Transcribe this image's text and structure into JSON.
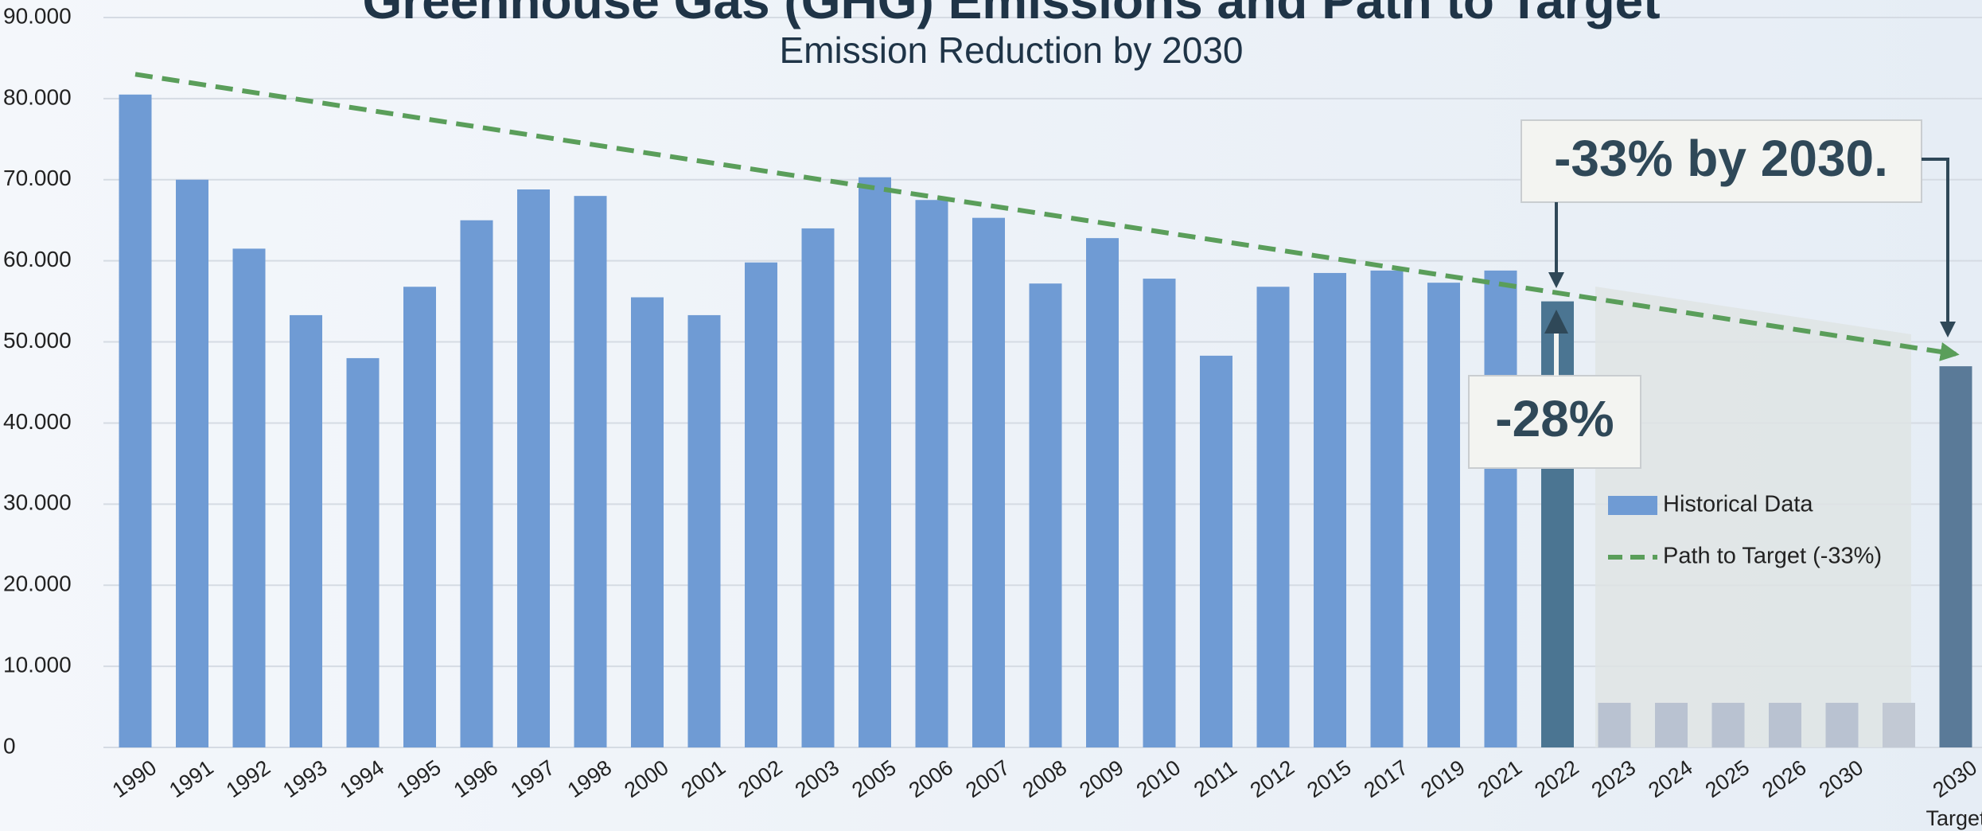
{
  "chart_data": {
    "type": "bar",
    "title": "Greenhouse Gas (GHG) Emissions and Path to Target",
    "subtitle": "Emission Reduction by 2030",
    "categories": [
      "1990",
      "1991",
      "1992",
      "1993",
      "1994",
      "1995",
      "1996",
      "1997",
      "1998",
      "2000",
      "2001",
      "2002",
      "2003",
      "2005",
      "2006",
      "2007",
      "2008",
      "2009",
      "2010",
      "2011",
      "2012",
      "2015",
      "2017",
      "2019",
      "2021",
      "2022",
      "2023",
      "2024",
      "2025",
      "2026",
      "2030",
      null,
      "2030"
    ],
    "target_label": "Target",
    "series": [
      {
        "name": "Historical Data",
        "color": "#6f9bd4",
        "values": [
          80.5,
          70,
          61.5,
          53.3,
          48,
          56.8,
          65,
          68.8,
          68,
          55.5,
          53.3,
          59.8,
          64,
          70.3,
          67.5,
          65.3,
          57.2,
          62.8,
          57.8,
          48.3,
          56.8,
          58.5,
          58.8,
          57.3,
          58.8,
          55,
          5.5,
          5.5,
          5.5,
          5.5,
          5.5,
          5.5,
          47
        ],
        "colors": [
          "#6f9bd4",
          "#6f9bd4",
          "#6f9bd4",
          "#6f9bd4",
          "#6f9bd4",
          "#6f9bd4",
          "#6f9bd4",
          "#6f9bd4",
          "#6f9bd4",
          "#6f9bd4",
          "#6f9bd4",
          "#6f9bd4",
          "#6f9bd4",
          "#6f9bd4",
          "#6f9bd4",
          "#6f9bd4",
          "#6f9bd4",
          "#6f9bd4",
          "#6f9bd4",
          "#6f9bd4",
          "#6f9bd4",
          "#6f9bd4",
          "#6f9bd4",
          "#6f9bd4",
          "#6f9bd4",
          "#4b7592",
          "#b9c2d1",
          "#b9c2d1",
          "#b9c2d1",
          "#b9c2d1",
          "#b9c2d1",
          "#c2c9d4",
          "#5a7a98"
        ]
      }
    ],
    "path": {
      "name": "Path to Target (-33%)",
      "color": "#5a9e5a",
      "start": 83,
      "end": 48.5
    },
    "annotations": [
      "-33% by 2030.",
      "-28%"
    ],
    "ylim": [
      0,
      90
    ],
    "yticks": [
      0,
      {
        "value": 10,
        "label": "10.000"
      },
      {
        "value": 20,
        "label": "20.000"
      },
      {
        "value": 30,
        "label": "30.000"
      },
      {
        "value": 40,
        "label": "40.000"
      },
      {
        "value": 50,
        "label": "50.000"
      },
      {
        "value": 60,
        "label": "60.000"
      },
      {
        "value": 70,
        "label": "70.000"
      },
      {
        "value": 80,
        "label": "80.000"
      },
      {
        "value": 90,
        "label": "90.000"
      }
    ],
    "grid": true
  }
}
